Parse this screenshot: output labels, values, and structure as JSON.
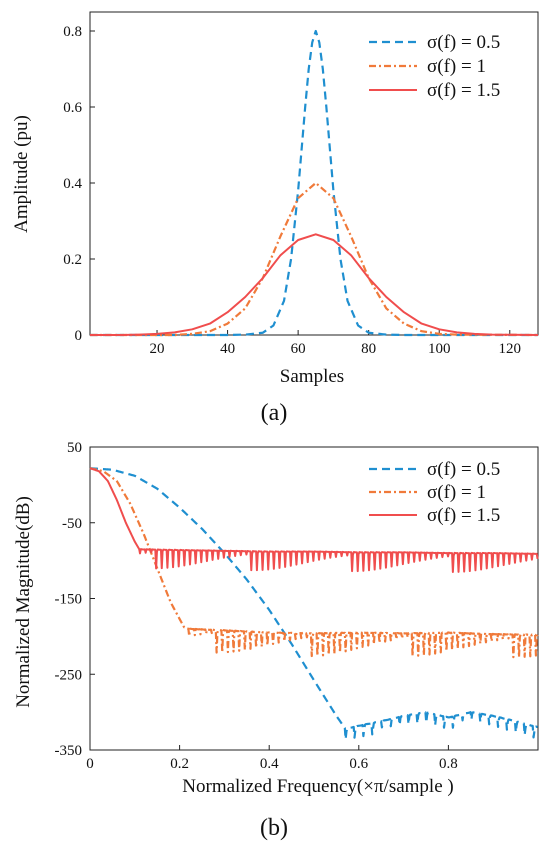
{
  "chart_data": [
    {
      "type": "line",
      "caption": "(a)",
      "xlabel": "Samples",
      "ylabel": "Amplitude (pu)",
      "xlim": [
        1,
        128
      ],
      "ylim": [
        0,
        0.85
      ],
      "xticks": [
        20,
        40,
        60,
        80,
        100,
        120
      ],
      "yticks": [
        0,
        0.2,
        0.4,
        0.6,
        0.8
      ],
      "xtick_labels": [
        "20",
        "40",
        "60",
        "80",
        "100",
        "120"
      ],
      "ytick_labels": [
        "0",
        "0.2",
        "0.4",
        "0.6",
        "0.8"
      ],
      "legend_position": "top-right",
      "grid": false,
      "series": [
        {
          "name": "σ(f) = 0.5",
          "legend_text": "σ(f) = 0.5",
          "color": "#1f8fd0",
          "style": "dashed",
          "x": [
            1,
            40,
            45,
            50,
            53,
            56,
            58,
            60,
            62,
            63,
            64,
            65,
            66,
            67,
            68,
            70,
            72,
            74,
            77,
            80,
            85,
            90,
            128
          ],
          "y": [
            0,
            0,
            0.001,
            0.006,
            0.025,
            0.09,
            0.2,
            0.38,
            0.6,
            0.7,
            0.77,
            0.8,
            0.77,
            0.7,
            0.6,
            0.38,
            0.2,
            0.09,
            0.025,
            0.006,
            0.001,
            0,
            0
          ]
        },
        {
          "name": "σ(f) = 1",
          "legend_text": "σ(f) = 1",
          "color": "#f07a3a",
          "style": "dashdot",
          "x": [
            1,
            25,
            30,
            35,
            40,
            45,
            50,
            55,
            60,
            65,
            70,
            75,
            80,
            85,
            90,
            95,
            100,
            105,
            128
          ],
          "y": [
            0,
            0,
            0.003,
            0.01,
            0.03,
            0.07,
            0.15,
            0.26,
            0.36,
            0.4,
            0.36,
            0.26,
            0.15,
            0.07,
            0.03,
            0.01,
            0.003,
            0.001,
            0
          ]
        },
        {
          "name": "σ(f) = 1.5",
          "legend_text": "σ(f) = 1.5",
          "color": "#f04d4d",
          "style": "solid",
          "x": [
            1,
            10,
            15,
            20,
            25,
            30,
            35,
            40,
            45,
            50,
            55,
            60,
            65,
            70,
            75,
            80,
            85,
            90,
            95,
            100,
            105,
            110,
            115,
            120,
            128
          ],
          "y": [
            0,
            0,
            0.001,
            0.003,
            0.007,
            0.015,
            0.03,
            0.06,
            0.1,
            0.15,
            0.21,
            0.25,
            0.265,
            0.25,
            0.21,
            0.15,
            0.1,
            0.06,
            0.03,
            0.015,
            0.007,
            0.003,
            0.001,
            0.0005,
            0
          ]
        }
      ]
    },
    {
      "type": "line",
      "caption": "(b)",
      "xlabel": "Normalized Frequency(×π/sample )",
      "ylabel": "Normalized Magnitude(dB)",
      "xlim": [
        0,
        1
      ],
      "ylim": [
        -350,
        50
      ],
      "xticks": [
        0,
        0.2,
        0.4,
        0.6,
        0.8
      ],
      "yticks": [
        50,
        -50,
        -150,
        -250,
        -350
      ],
      "xtick_labels": [
        "0",
        "0.2",
        "0.4",
        "0.6",
        "0.8"
      ],
      "ytick_labels": [
        "50",
        "-50",
        "-150",
        "-250",
        "-350"
      ],
      "legend_position": "top-right",
      "grid": false,
      "series": [
        {
          "name": "σ(f) = 0.5",
          "legend_text": "σ(f) = 0.5",
          "color": "#1f8fd0",
          "style": "dashed",
          "x": [
            0,
            0.05,
            0.1,
            0.15,
            0.2,
            0.25,
            0.3,
            0.35,
            0.4,
            0.45,
            0.5,
            0.55,
            0.57,
            0.6,
            0.65,
            0.7,
            0.75,
            0.8,
            0.85,
            0.9,
            0.95,
            1.0
          ],
          "y": [
            22,
            20,
            12,
            -5,
            -30,
            -58,
            -90,
            -125,
            -165,
            -210,
            -258,
            -305,
            -322,
            -318,
            -312,
            -305,
            -300,
            -307,
            -300,
            -305,
            -312,
            -320
          ],
          "ripple_start": 0.57,
          "ripple_depth": 15,
          "ripple_period": 0.02
        },
        {
          "name": "σ(f) = 1",
          "legend_text": "σ(f) = 1",
          "color": "#f07a3a",
          "style": "dashdot",
          "x": [
            0,
            0.03,
            0.06,
            0.09,
            0.12,
            0.15,
            0.18,
            0.21,
            0.22,
            0.3,
            0.4,
            0.5,
            0.6,
            0.7,
            0.8,
            0.9,
            1.0
          ],
          "y": [
            22,
            18,
            5,
            -25,
            -65,
            -110,
            -155,
            -188,
            -190,
            -192,
            -195,
            -196,
            -195,
            -196,
            -195,
            -197,
            -198
          ],
          "ripple_start": 0.22,
          "ripple_depth": 30,
          "ripple_period": 0.0125
        },
        {
          "name": "σ(f) = 1.5",
          "legend_text": "σ(f) = 1.5",
          "color": "#f04d4d",
          "style": "solid",
          "x": [
            0,
            0.02,
            0.04,
            0.06,
            0.08,
            0.1,
            0.11,
            0.2,
            0.3,
            0.4,
            0.5,
            0.6,
            0.7,
            0.8,
            0.9,
            1.0
          ],
          "y": [
            22,
            18,
            5,
            -20,
            -50,
            -75,
            -85,
            -86,
            -87,
            -88,
            -88,
            -89,
            -89,
            -90,
            -90,
            -91
          ],
          "ripple_start": 0.11,
          "ripple_depth": 25,
          "ripple_period": 0.0125
        }
      ]
    }
  ]
}
